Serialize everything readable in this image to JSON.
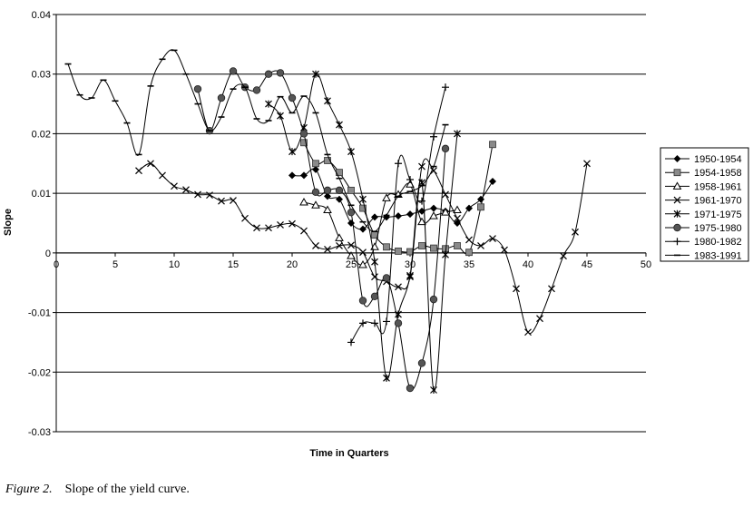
{
  "caption": {
    "label": "Figure 2.",
    "text": "Slope of the yield curve."
  },
  "chart_data": {
    "type": "line",
    "title": "",
    "xlabel": "Time in Quarters",
    "ylabel": "Slope",
    "xlim": [
      0,
      50
    ],
    "ylim": [
      -0.03,
      0.04
    ],
    "xticks": [
      0,
      5,
      10,
      15,
      20,
      25,
      30,
      35,
      40,
      45,
      50
    ],
    "yticks": [
      -0.03,
      -0.02,
      -0.01,
      0,
      0.01,
      0.02,
      0.03,
      0.04
    ],
    "xtick_labels": [
      "0",
      "5",
      "10",
      "15",
      "20",
      "25",
      "30",
      "35",
      "40",
      "45",
      "50"
    ],
    "ytick_labels": [
      "-0.03",
      "-0.02",
      "-0.01",
      "0",
      "0.01",
      "0.02",
      "0.03",
      "0.04"
    ],
    "grid": "horizontal",
    "legend": "right",
    "series": [
      {
        "name": "1950-1954",
        "marker": "diamond",
        "x": [
          20,
          21,
          22,
          23,
          24,
          25,
          26,
          27,
          28,
          29,
          30,
          31,
          32,
          33,
          34,
          35,
          36,
          37
        ],
        "y": [
          0.013,
          0.013,
          0.014,
          0.0095,
          0.009,
          0.005,
          0.004,
          0.006,
          0.006,
          0.0062,
          0.0065,
          0.007,
          0.0075,
          0.007,
          0.005,
          0.0075,
          0.009,
          0.012
        ]
      },
      {
        "name": "1954-1958",
        "marker": "square",
        "x": [
          21,
          22,
          23,
          24,
          25,
          26,
          27,
          28,
          29,
          30,
          31,
          32,
          33,
          34,
          35,
          36,
          37
        ],
        "y": [
          0.0185,
          0.015,
          0.0155,
          0.0135,
          0.0105,
          0.0075,
          0.003,
          0.001,
          0.0003,
          0.0002,
          0.0012,
          0.0008,
          0.0007,
          0.0012,
          0.0001,
          0.0077,
          0.0182
        ]
      },
      {
        "name": "1958-1961",
        "marker": "triangle",
        "x": [
          21,
          22,
          23,
          24,
          25,
          26,
          27,
          28,
          29,
          30,
          31,
          32,
          33,
          34
        ],
        "y": [
          0.0085,
          0.008,
          0.0072,
          0.0025,
          -0.0005,
          -0.002,
          0.001,
          0.0092,
          0.0098,
          0.0115,
          0.0052,
          0.0062,
          0.0068,
          0.0072
        ]
      },
      {
        "name": "1961-1970",
        "marker": "x",
        "x": [
          7,
          8,
          9,
          10,
          11,
          12,
          13,
          14,
          15,
          16,
          17,
          18,
          19,
          20,
          21,
          22,
          23,
          24,
          25,
          26,
          27,
          28,
          29,
          30,
          31,
          32,
          33,
          34,
          35,
          36,
          37,
          38,
          39,
          40,
          41,
          42,
          43,
          44,
          45
        ],
        "y": [
          0.0138,
          0.015,
          0.013,
          0.0112,
          0.0106,
          0.0098,
          0.0097,
          0.0087,
          0.0088,
          0.0058,
          0.0042,
          0.0042,
          0.0047,
          0.0049,
          0.0037,
          0.0012,
          0.0006,
          0.0012,
          0.0013,
          0.0001,
          -0.004,
          -0.0048,
          -0.0057,
          -0.004,
          0.0145,
          0.0138,
          0.0098,
          0.0058,
          0.0022,
          0.0012,
          0.0024,
          0.0005,
          -0.006,
          -0.0133,
          -0.011,
          -0.006,
          -0.0005,
          0.0035,
          0.015
        ]
      },
      {
        "name": "1971-1975",
        "marker": "star",
        "x": [
          18,
          19,
          20,
          21,
          22,
          23,
          24,
          25,
          26,
          27,
          28,
          29,
          30,
          31,
          32,
          33,
          34
        ],
        "y": [
          0.025,
          0.023,
          0.017,
          0.021,
          0.03,
          0.0255,
          0.0215,
          0.017,
          0.009,
          -0.0015,
          -0.021,
          -0.0103,
          -0.0038,
          0.0118,
          -0.023,
          -0.0003,
          0.02
        ]
      },
      {
        "name": "1975-1980",
        "marker": "circle",
        "x": [
          12,
          13,
          14,
          15,
          16,
          17,
          18,
          19,
          20,
          21,
          22,
          23,
          24,
          25,
          26,
          27,
          28,
          29,
          30,
          31,
          32,
          33
        ],
        "y": [
          0.0275,
          0.0205,
          0.026,
          0.0305,
          0.0278,
          0.0273,
          0.03,
          0.0302,
          0.026,
          0.02,
          0.0102,
          0.0105,
          0.0105,
          0.0068,
          -0.008,
          -0.0073,
          -0.0042,
          -0.0118,
          -0.0227,
          -0.0185,
          -0.0078,
          0.0175
        ]
      },
      {
        "name": "1980-1982",
        "marker": "plus",
        "x": [
          25,
          26,
          27,
          28,
          29,
          30,
          31,
          32,
          33
        ],
        "y": [
          -0.015,
          -0.0118,
          -0.0118,
          -0.0115,
          0.015,
          0.0123,
          0.0087,
          0.0195,
          0.0278
        ]
      },
      {
        "name": "1983-1991",
        "marker": "dash",
        "x": [
          1,
          2,
          3,
          4,
          5,
          6,
          7,
          8,
          9,
          10,
          11,
          12,
          13,
          14,
          15,
          16,
          17,
          18,
          19,
          20,
          21,
          22,
          23,
          24,
          25,
          26,
          27,
          28,
          29,
          30,
          31,
          32,
          33
        ],
        "y": [
          0.0317,
          0.0265,
          0.026,
          0.029,
          0.0255,
          0.0218,
          0.0165,
          0.028,
          0.0325,
          0.034,
          0.03,
          0.025,
          0.0205,
          0.0228,
          0.0275,
          0.0278,
          0.0225,
          0.0222,
          0.0262,
          0.0235,
          0.0263,
          0.0235,
          0.0165,
          0.0125,
          0.008,
          0.0052,
          0.0036,
          0.0063,
          0.0095,
          0.0103,
          0.0113,
          0.0145,
          0.0215
        ]
      }
    ]
  }
}
